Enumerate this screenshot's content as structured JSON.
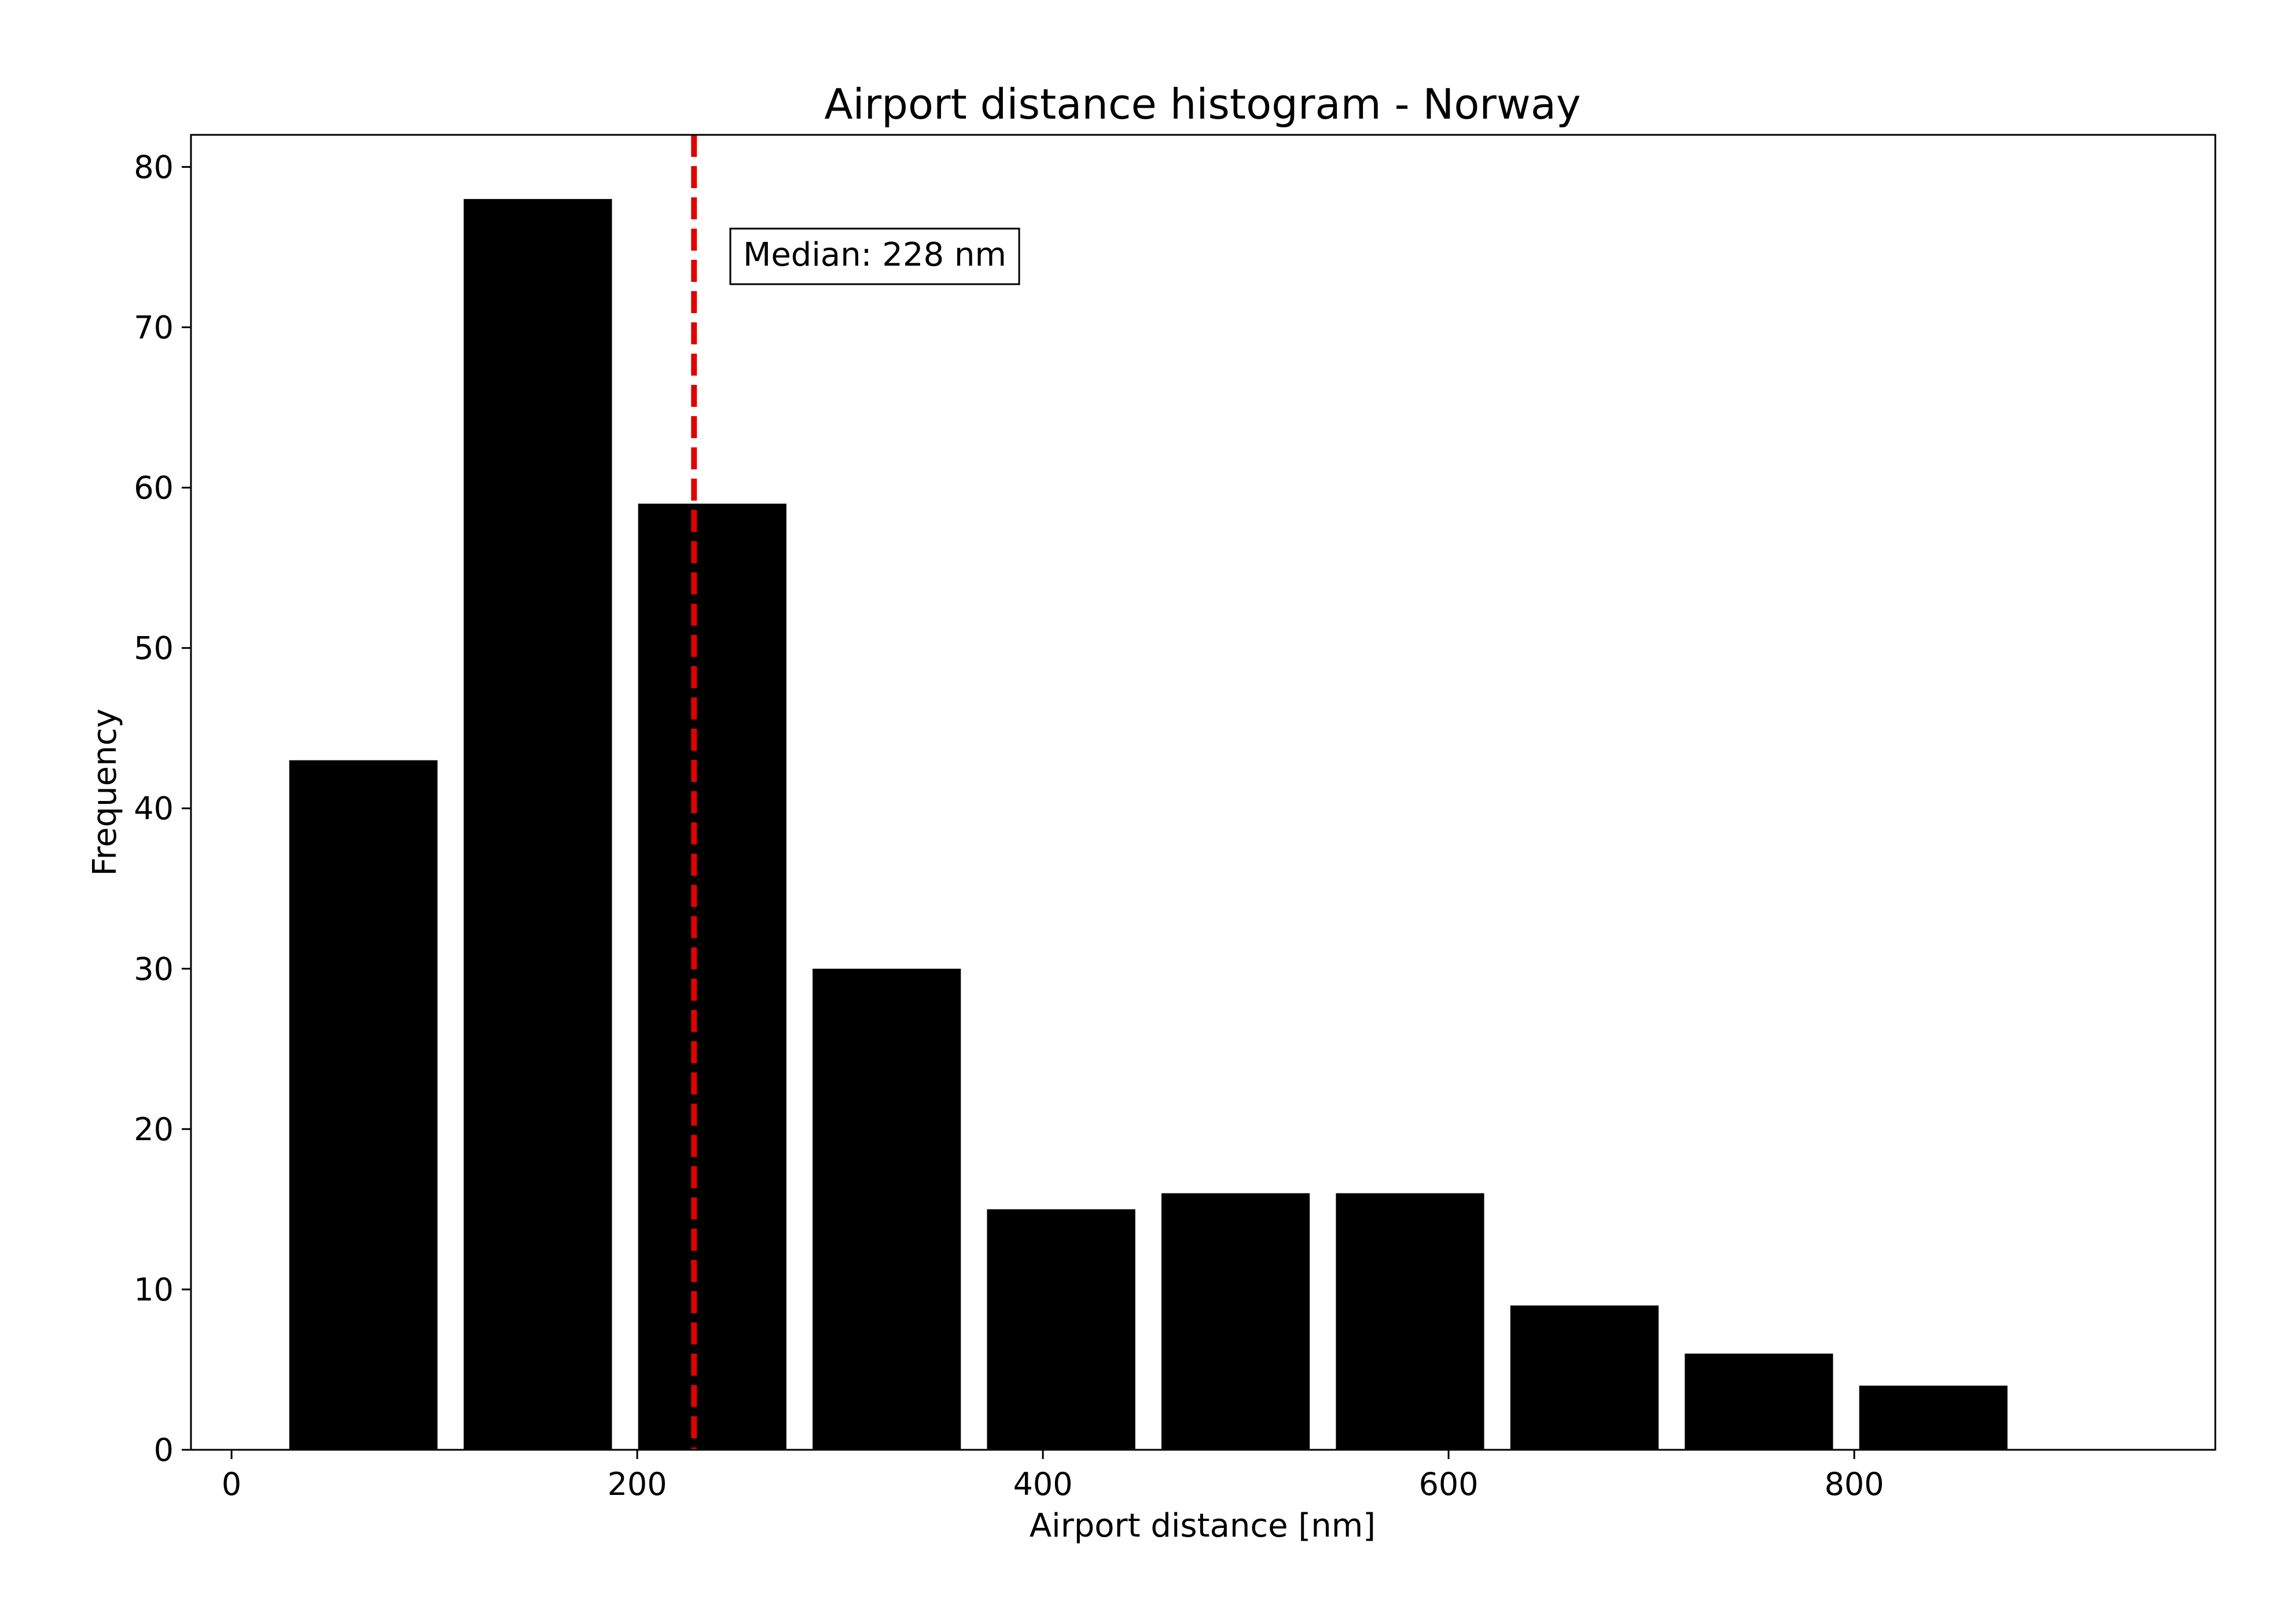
{
  "chart_data": {
    "type": "bar",
    "title": "Airport distance histogram - Norway",
    "xlabel": "Airport distance [nm]",
    "ylabel": "Frequency",
    "bins": [
      {
        "start": 22,
        "end": 108,
        "value": 43
      },
      {
        "start": 108,
        "end": 194,
        "value": 78
      },
      {
        "start": 194,
        "end": 280,
        "value": 59
      },
      {
        "start": 280,
        "end": 366,
        "value": 30
      },
      {
        "start": 366,
        "end": 452,
        "value": 15
      },
      {
        "start": 452,
        "end": 538,
        "value": 16
      },
      {
        "start": 538,
        "end": 624,
        "value": 16
      },
      {
        "start": 624,
        "end": 710,
        "value": 9
      },
      {
        "start": 710,
        "end": 796,
        "value": 6
      },
      {
        "start": 796,
        "end": 882,
        "value": 4
      }
    ],
    "xlim": [
      -20,
      978
    ],
    "ylim": [
      0,
      82
    ],
    "xticks": [
      0,
      200,
      400,
      600,
      800
    ],
    "yticks": [
      0,
      10,
      20,
      30,
      40,
      50,
      60,
      70,
      80
    ],
    "median": {
      "value": 228,
      "label": "Median: 228 nm",
      "color": "#e00000"
    },
    "bar_color": "#000000",
    "grid": false,
    "legend": "none"
  }
}
